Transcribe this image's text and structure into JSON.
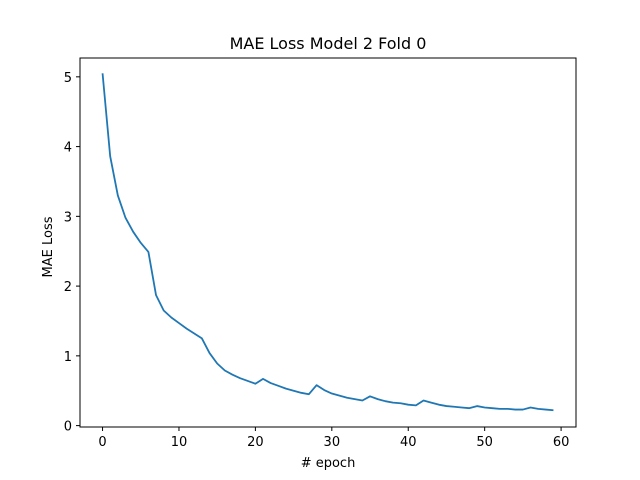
{
  "chart_data": {
    "type": "line",
    "title": "MAE Loss Model 2 Fold 0",
    "xlabel": "# epoch",
    "ylabel": "MAE Loss",
    "xlim": [
      -2.95,
      61.95
    ],
    "ylim": [
      -0.02,
      5.27
    ],
    "xticks": [
      0,
      10,
      20,
      30,
      40,
      50,
      60
    ],
    "yticks": [
      0,
      1,
      2,
      3,
      4,
      5
    ],
    "grid": false,
    "line_color": "#1f77b4",
    "series": [
      {
        "x": [
          0,
          1,
          2,
          3,
          4,
          5,
          6,
          7,
          8,
          9,
          10,
          11,
          12,
          13,
          14,
          15,
          16,
          17,
          18,
          19,
          20,
          21,
          22,
          23,
          24,
          25,
          26,
          27,
          28,
          29,
          30,
          31,
          32,
          33,
          34,
          35,
          36,
          37,
          38,
          39,
          40,
          41,
          42,
          43,
          44,
          45,
          46,
          47,
          48,
          49,
          50,
          51,
          52,
          53,
          54,
          55,
          56,
          57,
          58,
          59
        ],
        "values": [
          5.05,
          3.86,
          3.3,
          2.98,
          2.78,
          2.62,
          2.49,
          1.87,
          1.65,
          1.55,
          1.47,
          1.39,
          1.32,
          1.25,
          1.04,
          0.89,
          0.79,
          0.73,
          0.68,
          0.64,
          0.6,
          0.67,
          0.61,
          0.57,
          0.53,
          0.5,
          0.47,
          0.45,
          0.58,
          0.51,
          0.46,
          0.43,
          0.4,
          0.38,
          0.36,
          0.42,
          0.38,
          0.35,
          0.33,
          0.32,
          0.3,
          0.29,
          0.36,
          0.33,
          0.3,
          0.28,
          0.27,
          0.26,
          0.25,
          0.28,
          0.26,
          0.25,
          0.24,
          0.24,
          0.23,
          0.23,
          0.26,
          0.24,
          0.23,
          0.22
        ]
      }
    ]
  }
}
